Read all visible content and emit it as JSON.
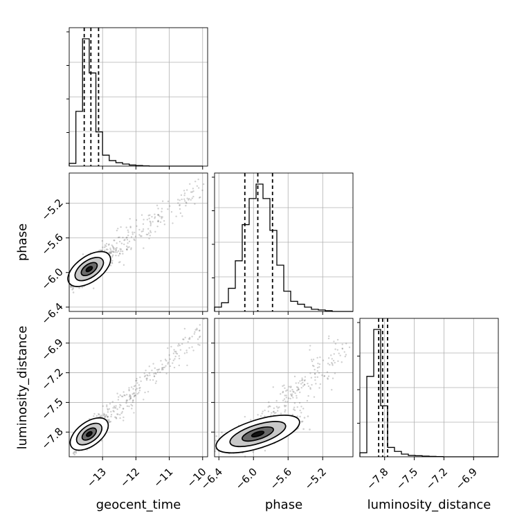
{
  "chart_data": {
    "type": "corner",
    "parameters": [
      "geocent_time",
      "phase",
      "luminosity_distance"
    ],
    "axis_labels": {
      "geocent_time": "geocent_time",
      "phase": "phase",
      "luminosity_distance": "luminosity_distance"
    },
    "ranges": {
      "geocent_time": [
        -14.0,
        -9.85
      ],
      "phase": [
        -6.45,
        -4.85
      ],
      "luminosity_distance": [
        -8.05,
        -6.65
      ]
    },
    "ticks": {
      "geocent_time": [
        -13,
        -12,
        -11,
        -10
      ],
      "phase": [
        -6.4,
        -6.0,
        -5.6,
        -5.2
      ],
      "luminosity_distance": [
        -7.8,
        -7.5,
        -7.2,
        -6.9
      ]
    },
    "tick_labels": {
      "geocent_time": [
        "−13",
        "−12",
        "−11",
        "−10"
      ],
      "phase": [
        "−6.4",
        "−6.0",
        "−5.6",
        "−5.2"
      ],
      "luminosity_distance": [
        "−7.8",
        "−7.5",
        "−7.2",
        "−6.9"
      ]
    },
    "quantiles": {
      "geocent_time": [
        -13.55,
        -13.35,
        -13.12
      ],
      "phase": [
        -6.1,
        -5.95,
        -5.78
      ],
      "luminosity_distance": [
        -7.86,
        -7.82,
        -7.77
      ]
    },
    "histograms": {
      "geocent_time": {
        "edges": [
          -14.0,
          -13.8,
          -13.6,
          -13.4,
          -13.2,
          -13.0,
          -12.8,
          -12.6,
          -12.4,
          -12.2,
          -12.0,
          -11.8,
          -11.6,
          -11.4,
          -11.2,
          -11.0,
          -10.8,
          -10.6,
          -10.4,
          -10.2,
          -10.0
        ],
        "counts": [
          0.02,
          0.4,
          0.93,
          0.68,
          0.25,
          0.08,
          0.04,
          0.025,
          0.015,
          0.008,
          0.004,
          0.002,
          0,
          0,
          0,
          0,
          0,
          0,
          0,
          0
        ]
      },
      "phase": {
        "edges": [
          -6.45,
          -6.37,
          -6.29,
          -6.21,
          -6.13,
          -6.05,
          -5.97,
          -5.89,
          -5.81,
          -5.73,
          -5.65,
          -5.57,
          -5.49,
          -5.41,
          -5.33,
          -5.25,
          -5.17,
          -5.09,
          -5.01,
          -4.93,
          -4.85
        ],
        "counts": [
          0.03,
          0.06,
          0.16,
          0.35,
          0.6,
          0.78,
          0.88,
          0.78,
          0.56,
          0.32,
          0.14,
          0.07,
          0.05,
          0.03,
          0.015,
          0.01,
          0.005,
          0,
          0,
          0
        ]
      },
      "luminosity_distance": {
        "edges": [
          -8.05,
          -7.98,
          -7.91,
          -7.84,
          -7.77,
          -7.7,
          -7.63,
          -7.56,
          -7.49,
          -7.42,
          -7.35,
          -7.28,
          -7.21,
          -7.14,
          -7.07,
          -7.0,
          -6.93,
          -6.86,
          -6.79,
          -6.72,
          -6.65
        ],
        "counts": [
          0.03,
          0.6,
          0.95,
          0.38,
          0.07,
          0.04,
          0.02,
          0.01,
          0.008,
          0.005,
          0.003,
          0.002,
          0,
          0,
          0,
          0,
          0,
          0,
          0,
          0
        ]
      }
    },
    "pair_structure": {
      "phase_vs_geocent_time": {
        "center": [
          -13.4,
          -5.96
        ],
        "slope": 0.27,
        "spread": [
          0.25,
          0.05
        ],
        "tail_to": [
          -10.0,
          -5.0
        ]
      },
      "luminosity_distance_vs_geocent_time": {
        "center": [
          -13.4,
          -7.82
        ],
        "slope": 0.25,
        "spread": [
          0.22,
          0.04
        ],
        "tail_to": [
          -10.0,
          -6.75
        ]
      },
      "luminosity_distance_vs_phase": {
        "center": [
          -5.95,
          -7.82
        ],
        "slope": 0.28,
        "spread": [
          0.2,
          0.05
        ],
        "tail_to": [
          -4.95,
          -6.9
        ]
      }
    },
    "grid": true
  }
}
